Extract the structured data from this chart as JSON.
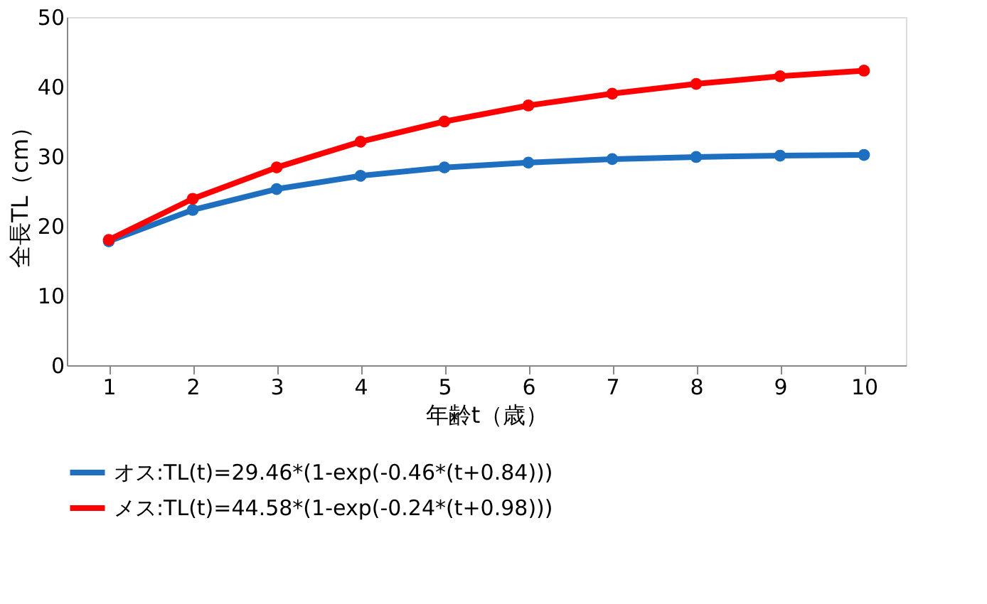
{
  "chart_data": {
    "type": "line",
    "xlabel": "年齢t（歳）",
    "ylabel": "全長TL（cm）",
    "categories": [
      "1",
      "2",
      "3",
      "4",
      "5",
      "6",
      "7",
      "8",
      "9",
      "10"
    ],
    "series": [
      {
        "name": "オス:TL(t)=29.46*(1-exp(-0.46*(t+0.84)))",
        "color": "#1f6fc0",
        "values": [
          17.8,
          22.3,
          25.3,
          27.2,
          28.4,
          29.1,
          29.6,
          29.9,
          30.1,
          30.2
        ]
      },
      {
        "name": "メス:TL(t)=44.58*(1-exp(-0.24*(t+0.98)))",
        "color": "#ff0000",
        "values": [
          18.0,
          23.9,
          28.4,
          32.1,
          35.0,
          37.3,
          39.0,
          40.4,
          41.5,
          42.3
        ]
      }
    ],
    "ylim": [
      0,
      50
    ],
    "yticks": [
      0,
      10,
      20,
      30,
      40,
      50
    ],
    "grid": false,
    "legend": "bottom",
    "marker": "circle",
    "line_style": "solid"
  }
}
